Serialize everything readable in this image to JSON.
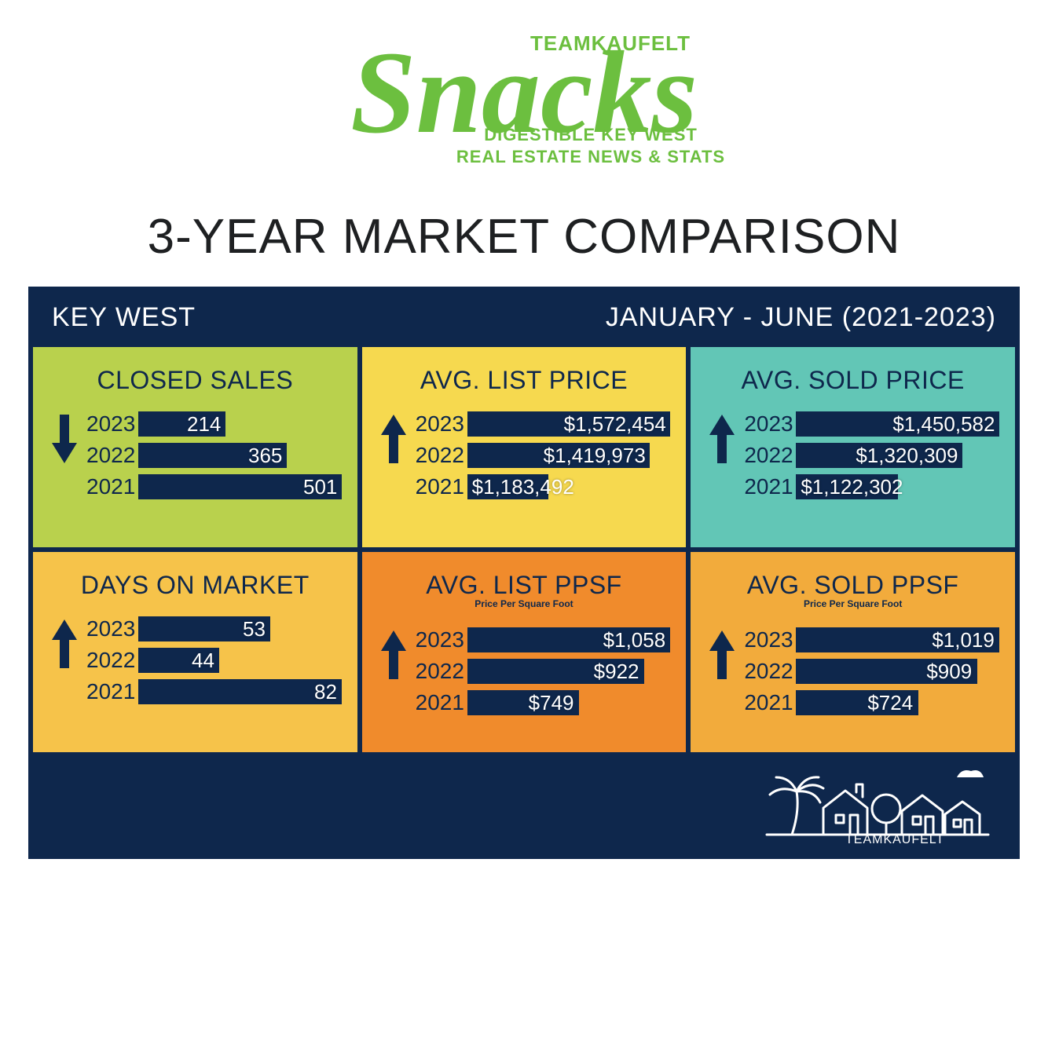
{
  "logo": {
    "brand": "TEAMKAUFELT",
    "script": "Snacks",
    "tagline1": "DIGESTIBLE KEY WEST",
    "tagline2": "REAL ESTATE NEWS & STATS",
    "color": "#6cbf3f"
  },
  "subtitle": "3-YEAR MARKET COMPARISON",
  "panel": {
    "left_label": "KEY WEST",
    "right_label": "JANUARY - JUNE (2021-2023)",
    "bg": "#0e274c",
    "bar_color": "#0e274c",
    "text_on_bar": "#ffffff"
  },
  "cells": [
    {
      "title": "CLOSED SALES",
      "sub": "",
      "bg": "#b9d14d",
      "direction": "down",
      "rows": [
        {
          "year": "2023",
          "label": "214",
          "pct": 43
        },
        {
          "year": "2022",
          "label": "365",
          "pct": 73
        },
        {
          "year": "2021",
          "label": "501",
          "pct": 100
        }
      ]
    },
    {
      "title": "AVG. LIST PRICE",
      "sub": "",
      "bg": "#f6d94f",
      "direction": "up",
      "rows": [
        {
          "year": "2023",
          "label": "$1,572,454",
          "pct": 100
        },
        {
          "year": "2022",
          "label": "$1,419,973",
          "pct": 90
        },
        {
          "year": "2021",
          "label": "$1,183,492",
          "pct": 40
        }
      ]
    },
    {
      "title": "AVG. SOLD PRICE",
      "sub": "",
      "bg": "#62c6b6",
      "direction": "up",
      "rows": [
        {
          "year": "2023",
          "label": "$1,450,582",
          "pct": 100
        },
        {
          "year": "2022",
          "label": "$1,320,309",
          "pct": 82
        },
        {
          "year": "2021",
          "label": "$1,122,302",
          "pct": 50
        }
      ]
    },
    {
      "title": "DAYS ON MARKET",
      "sub": "",
      "bg": "#f6c34a",
      "direction": "up",
      "rows": [
        {
          "year": "2023",
          "label": "53",
          "pct": 65
        },
        {
          "year": "2022",
          "label": "44",
          "pct": 40
        },
        {
          "year": "2021",
          "label": "82",
          "pct": 100
        }
      ]
    },
    {
      "title": "AVG. LIST PPSF",
      "sub": "Price Per Square Foot",
      "bg": "#f08b2c",
      "direction": "up",
      "rows": [
        {
          "year": "2023",
          "label": "$1,058",
          "pct": 100
        },
        {
          "year": "2022",
          "label": "$922",
          "pct": 87
        },
        {
          "year": "2021",
          "label": "$749",
          "pct": 55
        }
      ]
    },
    {
      "title": "AVG. SOLD PPSF",
      "sub": "Price Per Square Foot",
      "bg": "#f2ab3c",
      "direction": "up",
      "rows": [
        {
          "year": "2023",
          "label": "$1,019",
          "pct": 100
        },
        {
          "year": "2022",
          "label": "$909",
          "pct": 89
        },
        {
          "year": "2021",
          "label": "$724",
          "pct": 60
        }
      ]
    }
  ],
  "footer_brand": "TEAMKAUFELT"
}
